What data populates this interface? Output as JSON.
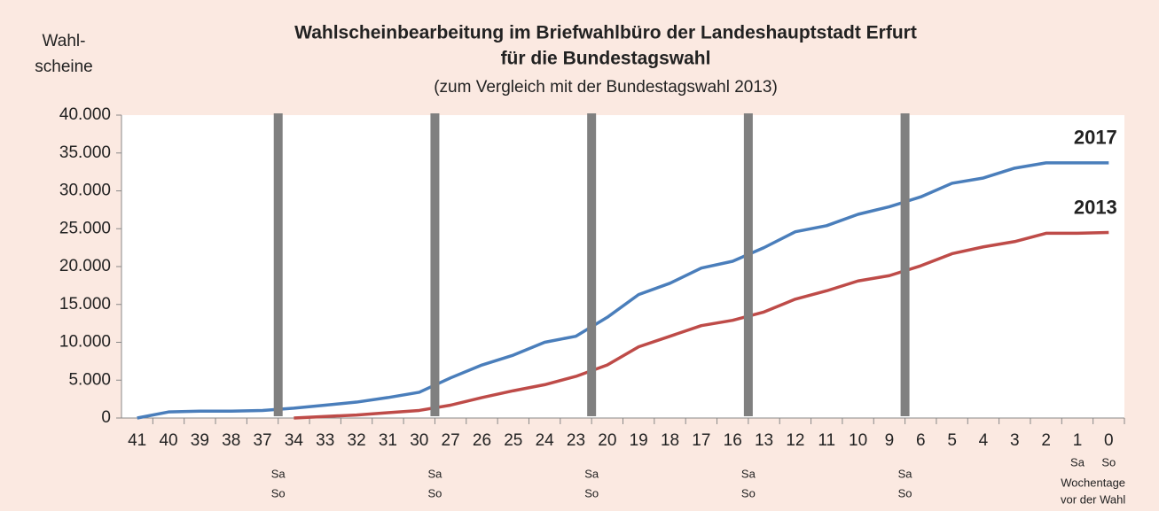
{
  "chart_data": {
    "type": "line",
    "title": [
      "Wahlscheinbearbeitung im Briefwahlbüro der Landeshauptstadt  Erfurt",
      "für die Bundestagswahl"
    ],
    "subtitle": "(zum Vergleich mit der Bundestagswahl 2013)",
    "ylabel": [
      "Wahl-",
      "scheine"
    ],
    "categories": [
      "41",
      "40",
      "39",
      "38",
      "37",
      "34",
      "33",
      "32",
      "31",
      "30",
      "27",
      "26",
      "25",
      "24",
      "23",
      "20",
      "19",
      "18",
      "17",
      "16",
      "13",
      "12",
      "11",
      "10",
      "9",
      "6",
      "5",
      "4",
      "3",
      "2",
      "1",
      "0"
    ],
    "x_sublabels": [
      null,
      null,
      null,
      null,
      null,
      null,
      null,
      null,
      null,
      null,
      null,
      null,
      null,
      null,
      null,
      null,
      null,
      null,
      null,
      null,
      null,
      null,
      null,
      null,
      null,
      null,
      null,
      null,
      null,
      null,
      "Sa",
      "So"
    ],
    "x_note": [
      "Wochentage",
      "vor der Wahl"
    ],
    "weekends": [
      {
        "after": "37",
        "label": [
          "Sa",
          "So"
        ]
      },
      {
        "after": "30",
        "label": [
          "Sa",
          "So"
        ]
      },
      {
        "after": "23",
        "label": [
          "Sa",
          "So"
        ]
      },
      {
        "after": "16",
        "label": [
          "Sa",
          "So"
        ]
      },
      {
        "after": "9",
        "label": [
          "Sa",
          "So"
        ]
      }
    ],
    "series": [
      {
        "name": "2017",
        "color": "#4a7ebb",
        "values": [
          0,
          800,
          900,
          900,
          1000,
          1300,
          1700,
          2100,
          2700,
          3400,
          5300,
          7000,
          8300,
          10000,
          10800,
          13300,
          16300,
          17800,
          19800,
          20700,
          22500,
          24600,
          25400,
          26900,
          27900,
          29200,
          31000,
          31700,
          33000,
          33700,
          33700,
          33700
        ]
      },
      {
        "name": "2013",
        "color": "#be4b48",
        "values": [
          null,
          null,
          null,
          null,
          null,
          0,
          200,
          400,
          700,
          1000,
          1700,
          2700,
          3600,
          4400,
          5500,
          7000,
          9400,
          10800,
          12200,
          12900,
          14000,
          15700,
          16800,
          18100,
          18800,
          20100,
          21700,
          22600,
          23300,
          24400,
          24400,
          24500
        ]
      }
    ],
    "ylim": [
      0,
      40000
    ],
    "yticks": [
      0,
      {
        "value": 5000,
        "label": "5.000"
      },
      {
        "value": 10000,
        "label": "10.000"
      },
      {
        "value": 15000,
        "label": "15.000"
      },
      {
        "value": 20000,
        "label": "20.000"
      },
      {
        "value": 25000,
        "label": "25.000"
      },
      {
        "value": 30000,
        "label": "30.000"
      },
      {
        "value": 35000,
        "label": "35.000"
      },
      {
        "value": 40000,
        "label": "40.000"
      }
    ],
    "grid": false
  }
}
